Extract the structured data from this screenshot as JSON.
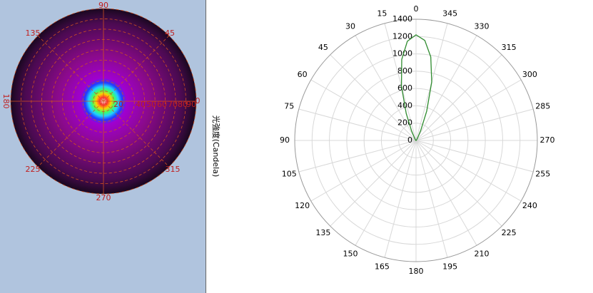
{
  "polar_image": {
    "angle_labels": [
      "90",
      "45",
      "135",
      "180",
      "0",
      "225",
      "315",
      "270"
    ],
    "radius_labels": [
      "20",
      "40",
      "50",
      "60",
      "70",
      "80",
      "90"
    ]
  },
  "chart_data": {
    "type": "polar",
    "y_axis_label": "光強度(Candela)",
    "x": [
      0,
      5,
      10,
      15,
      20,
      25,
      30,
      35,
      40,
      45,
      50,
      55,
      60,
      65,
      70,
      75,
      80,
      85,
      90,
      95,
      100,
      105,
      110,
      115,
      120,
      125,
      130,
      135,
      140,
      145,
      150,
      155,
      160,
      165,
      170,
      175,
      180,
      185,
      190,
      195,
      200,
      205,
      210,
      215,
      220,
      225,
      230,
      235,
      240,
      245,
      250,
      255,
      260,
      265,
      270,
      275,
      280,
      285,
      290,
      295,
      300,
      305,
      310,
      315,
      320,
      325,
      330,
      335,
      340,
      345,
      350,
      355
    ],
    "series": [
      {
        "color": "#2e8b2e",
        "values": [
          1220,
          1150,
          950,
          650,
          330,
          120,
          40,
          20,
          12,
          8,
          6,
          5,
          4,
          3,
          2,
          2,
          1,
          1,
          0,
          0,
          0,
          0,
          0,
          0,
          0,
          0,
          0,
          0,
          0,
          0,
          0,
          0,
          0,
          0,
          0,
          0,
          0,
          0,
          0,
          0,
          0,
          0,
          0,
          0,
          0,
          0,
          0,
          0,
          0,
          0,
          0,
          0,
          0,
          0,
          0,
          1,
          1,
          2,
          2,
          3,
          4,
          5,
          6,
          8,
          12,
          20,
          45,
          130,
          360,
          700,
          980,
          1160
        ]
      }
    ],
    "rlim": [
      0,
      1400
    ],
    "rticks": [
      0,
      200,
      400,
      600,
      800,
      1000,
      1200,
      1400
    ],
    "angle_ticks": [
      0,
      15,
      30,
      45,
      60,
      75,
      90,
      105,
      120,
      135,
      150,
      165,
      180,
      195,
      210,
      225,
      240,
      255,
      270,
      285,
      300,
      315,
      330,
      345
    ],
    "grid": true
  }
}
